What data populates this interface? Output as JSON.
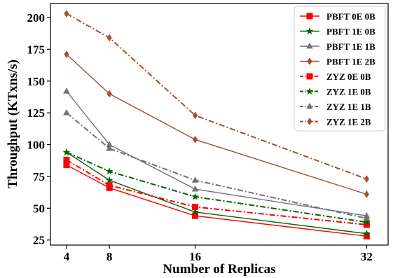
{
  "chart_data": {
    "type": "line",
    "title": "",
    "xlabel": "Number of Replicas",
    "ylabel": "Throughput (KTxns/s)",
    "x": [
      4,
      8,
      16,
      32
    ],
    "x_ticks": [
      "4",
      "8",
      "16",
      "32"
    ],
    "xlim": [
      2.5,
      34
    ],
    "ylim": [
      21,
      211
    ],
    "y_ticks": [
      "25",
      "50",
      "75",
      "100",
      "125",
      "150",
      "175",
      "200"
    ],
    "grid": false,
    "legend_position": "top-right",
    "series": [
      {
        "name": "PBFT 0E 0B",
        "values": [
          84,
          66,
          44,
          28
        ],
        "color": "#ff0000",
        "marker": "square",
        "dash": "solid"
      },
      {
        "name": "PBFT 1E 0B",
        "values": [
          94,
          72,
          47,
          30
        ],
        "color": "#006400",
        "marker": "star",
        "dash": "solid"
      },
      {
        "name": "PBFT 1E 1B",
        "values": [
          142,
          100,
          65,
          44
        ],
        "color": "#707070",
        "marker": "triangle",
        "dash": "solid"
      },
      {
        "name": "PBFT 1E 2B",
        "values": [
          171,
          140,
          104,
          61
        ],
        "color": "#a0522d",
        "marker": "diamond",
        "dash": "solid"
      },
      {
        "name": "ZYZ 0E 0B",
        "values": [
          88,
          68,
          51,
          37
        ],
        "color": "#ff0000",
        "marker": "square",
        "dash": "dashdot"
      },
      {
        "name": "ZYZ 1E 0B",
        "values": [
          94,
          79,
          59,
          39
        ],
        "color": "#006400",
        "marker": "star",
        "dash": "dashdot"
      },
      {
        "name": "ZYZ 1E 1B",
        "values": [
          125,
          97,
          72,
          42
        ],
        "color": "#707070",
        "marker": "triangle",
        "dash": "dashdot"
      },
      {
        "name": "ZYZ 1E 2B",
        "values": [
          203,
          184,
          123,
          73
        ],
        "color": "#a0522d",
        "marker": "diamond",
        "dash": "dashdot"
      }
    ]
  }
}
